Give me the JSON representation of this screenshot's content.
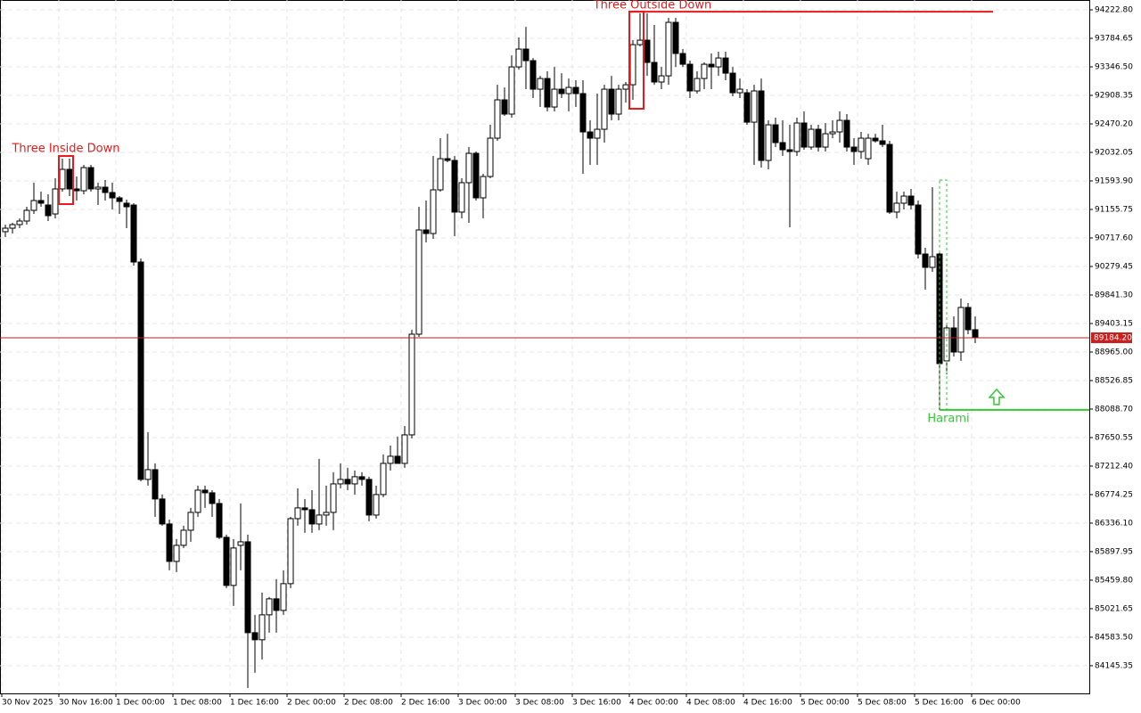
{
  "chart_data": {
    "type": "candlestick",
    "time_labels": [
      "30 Nov 2025",
      "30 Nov 16:00",
      "1 Dec 00:00",
      "1 Dec 08:00",
      "1 Dec 16:00",
      "2 Dec 00:00",
      "2 Dec 08:00",
      "2 Dec 16:00",
      "3 Dec 00:00",
      "3 Dec 08:00",
      "3 Dec 16:00",
      "4 Dec 00:00",
      "4 Dec 08:00",
      "4 Dec 16:00",
      "5 Dec 00:00",
      "5 Dec 08:00",
      "5 Dec 16:00",
      "6 Dec 00:00"
    ],
    "open": [
      90814,
      90868,
      90923,
      90978,
      91142,
      91293,
      91224,
      91087,
      91471,
      91772,
      91471,
      91443,
      91799,
      91471,
      91498,
      91416,
      91334,
      91252,
      91224,
      90348,
      87008,
      87158,
      86707,
      86323,
      85748,
      85995,
      86227,
      86501,
      86843,
      86802,
      86638,
      86118,
      85379,
      85995,
      86049,
      84653,
      84544,
      84927,
      85173,
      84995,
      85406,
      86405,
      86570,
      86542,
      86323,
      86460,
      86501,
      86939,
      87008,
      86939,
      87049,
      87008,
      86460,
      86775,
      87254,
      87364,
      87254,
      87692,
      89239,
      90841,
      90786,
      91457,
      91936,
      91909,
      91115,
      91567,
      92018,
      91334,
      91662,
      92251,
      92840,
      92621,
      93346,
      93620,
      93442,
      93004,
      93168,
      92730,
      93004,
      92936,
      93031,
      92936,
      92347,
      92251,
      92388,
      93004,
      92621,
      93004,
      93072,
      93688,
      93757,
      93415,
      93114,
      93209,
      94031,
      93552,
      93387,
      92977,
      93168,
      93387,
      93346,
      93483,
      93250,
      92949,
      92949,
      92497,
      92977,
      91909,
      92456,
      92183,
      92073,
      92046,
      92484,
      92114,
      92388,
      92114,
      92319,
      92347,
      92525,
      92114,
      92046,
      91936,
      92251,
      92210,
      92155,
      91115,
      91252,
      91361,
      91224,
      90471,
      90266,
      90471,
      88829,
      89335,
      88965,
      89650,
      89308
    ],
    "high": [
      90923,
      90950,
      91019,
      91197,
      91567,
      91430,
      91389,
      91635,
      91936,
      91936,
      91662,
      91840,
      91840,
      91567,
      91608,
      91567,
      91361,
      91306,
      91252,
      90403,
      87733,
      87254,
      86775,
      86392,
      86091,
      86296,
      86570,
      86912,
      86912,
      86843,
      86707,
      86159,
      86091,
      86638,
      86159,
      84927,
      85269,
      85201,
      85474,
      85611,
      86433,
      86871,
      86707,
      86843,
      87323,
      86912,
      87117,
      87254,
      87186,
      87145,
      87117,
      87049,
      86912,
      87391,
      87528,
      87665,
      87829,
      89308,
      91197,
      91293,
      91977,
      92251,
      92319,
      91977,
      91635,
      92114,
      92046,
      91703,
      92456,
      93072,
      93031,
      93524,
      93798,
      93962,
      93483,
      93209,
      93278,
      93346,
      93250,
      93168,
      93141,
      93141,
      92525,
      92936,
      93072,
      93209,
      93072,
      93114,
      93757,
      94168,
      94168,
      93990,
      93346,
      94099,
      94099,
      93620,
      93442,
      93278,
      93415,
      93552,
      93579,
      93579,
      93346,
      93168,
      93004,
      93072,
      93168,
      92525,
      92566,
      92525,
      92456,
      92566,
      92662,
      92456,
      92456,
      92484,
      92525,
      92662,
      92621,
      92251,
      92347,
      92319,
      92319,
      92456,
      92210,
      91430,
      91430,
      91471,
      91293,
      90567,
      91498,
      90512,
      89376,
      89513,
      89787,
      89718,
      89513
    ],
    "low": [
      90731,
      90786,
      90868,
      90923,
      91087,
      91197,
      90978,
      91019,
      91430,
      91361,
      91293,
      91389,
      91430,
      91224,
      91293,
      91156,
      91087,
      90868,
      90293,
      86980,
      86912,
      86433,
      86296,
      85611,
      85584,
      85954,
      86049,
      86433,
      86570,
      86433,
      86091,
      85338,
      85064,
      85611,
      83804,
      84037,
      84242,
      84653,
      84653,
      84927,
      85338,
      86296,
      86186,
      86186,
      86227,
      86296,
      86227,
      86871,
      86843,
      86775,
      86912,
      86364,
      86405,
      86734,
      87145,
      87254,
      87186,
      87638,
      89198,
      90649,
      90704,
      91430,
      91881,
      90745,
      91019,
      90950,
      91293,
      91019,
      91635,
      92210,
      92593,
      92566,
      93305,
      93004,
      92867,
      92730,
      92662,
      92662,
      92867,
      92662,
      92730,
      91703,
      91840,
      91840,
      92183,
      92525,
      92525,
      92799,
      92840,
      93661,
      93209,
      93072,
      93004,
      93072,
      93346,
      93346,
      92867,
      92936,
      93004,
      93004,
      93209,
      93141,
      92894,
      92867,
      92456,
      91840,
      91799,
      91772,
      92114,
      91977,
      90882,
      91977,
      92073,
      92073,
      92046,
      92046,
      92251,
      92183,
      92046,
      91840,
      91936,
      91840,
      92183,
      92114,
      91087,
      91019,
      91156,
      91156,
      90403,
      89924,
      90198,
      88076,
      88623,
      88897,
      88829,
      89239,
      89102
    ],
    "close": [
      90868,
      90923,
      90978,
      91142,
      91293,
      91252,
      91060,
      91471,
      91772,
      91471,
      91443,
      91799,
      91471,
      91498,
      91416,
      91334,
      91279,
      91197,
      90348,
      87008,
      87158,
      86707,
      86323,
      85748,
      85995,
      86227,
      86501,
      86843,
      86802,
      86638,
      86118,
      85379,
      85954,
      86049,
      84653,
      84544,
      84927,
      85173,
      84995,
      85406,
      86405,
      86570,
      86542,
      86323,
      86460,
      86501,
      86939,
      87008,
      86939,
      87049,
      87008,
      86460,
      86775,
      87254,
      87364,
      87254,
      87692,
      89239,
      90841,
      90786,
      91457,
      91936,
      91909,
      91115,
      91567,
      92018,
      91334,
      91662,
      92251,
      92840,
      92621,
      93346,
      93620,
      93442,
      93004,
      93168,
      92730,
      93004,
      92936,
      93031,
      92936,
      92347,
      92251,
      92388,
      93004,
      92621,
      93004,
      93072,
      93688,
      93757,
      93415,
      93114,
      93209,
      94031,
      93552,
      93387,
      92977,
      93168,
      93387,
      93346,
      93483,
      93250,
      92949,
      93004,
      92497,
      92977,
      91909,
      92456,
      92183,
      92073,
      92046,
      92484,
      92114,
      92388,
      92114,
      92319,
      92347,
      92525,
      92114,
      92046,
      92251,
      92251,
      92210,
      92155,
      91115,
      91252,
      91361,
      91224,
      90471,
      90266,
      90430,
      88787,
      89335,
      88965,
      89650,
      89308,
      89184.2
    ],
    "ylim": [
      83720,
      94374
    ],
    "yticks": [
      {
        "value": 94222.8,
        "label": "94222.80"
      },
      {
        "value": 93784.65,
        "label": "93784.65"
      },
      {
        "value": 93346.5,
        "label": "93346.50"
      },
      {
        "value": 92908.35,
        "label": "92908.35"
      },
      {
        "value": 92470.2,
        "label": "92470.20"
      },
      {
        "value": 92032.05,
        "label": "92032.05"
      },
      {
        "value": 91593.9,
        "label": "91593.90"
      },
      {
        "value": 91155.75,
        "label": "91155.75"
      },
      {
        "value": 90717.6,
        "label": "90717.60"
      },
      {
        "value": 90279.45,
        "label": "90279.45"
      },
      {
        "value": 89841.3,
        "label": "89841.30"
      },
      {
        "value": 89403.15,
        "label": "89403.15"
      },
      {
        "value": 88965,
        "label": "88965.00"
      },
      {
        "value": 88526.85,
        "label": "88526.85"
      },
      {
        "value": 88088.7,
        "label": "88088.70"
      },
      {
        "value": 87650.55,
        "label": "87650.55"
      },
      {
        "value": 87212.4,
        "label": "87212.40"
      },
      {
        "value": 86774.25,
        "label": "86774.25"
      },
      {
        "value": 86336.1,
        "label": "86336.10"
      },
      {
        "value": 85897.95,
        "label": "85897.95"
      },
      {
        "value": 85459.8,
        "label": "85459.80"
      },
      {
        "value": 85021.65,
        "label": "85021.65"
      },
      {
        "value": 84583.5,
        "label": "84583.50"
      },
      {
        "value": 84145.35,
        "label": "84145.35"
      }
    ],
    "current_price": {
      "value": 89184.2,
      "label": "89184.20"
    },
    "grid": true,
    "annotations": [
      {
        "text": "Three Inside Down",
        "candles": [
          8,
          9
        ],
        "color": "#e8191b"
      },
      {
        "text": "Three Outside Down",
        "candles": [
          88,
          89
        ],
        "color": "#e8191b",
        "level": 94195
      },
      {
        "text": "Harami",
        "candles": [
          131,
          132
        ],
        "color": "#35c735",
        "level": 88076
      }
    ]
  }
}
